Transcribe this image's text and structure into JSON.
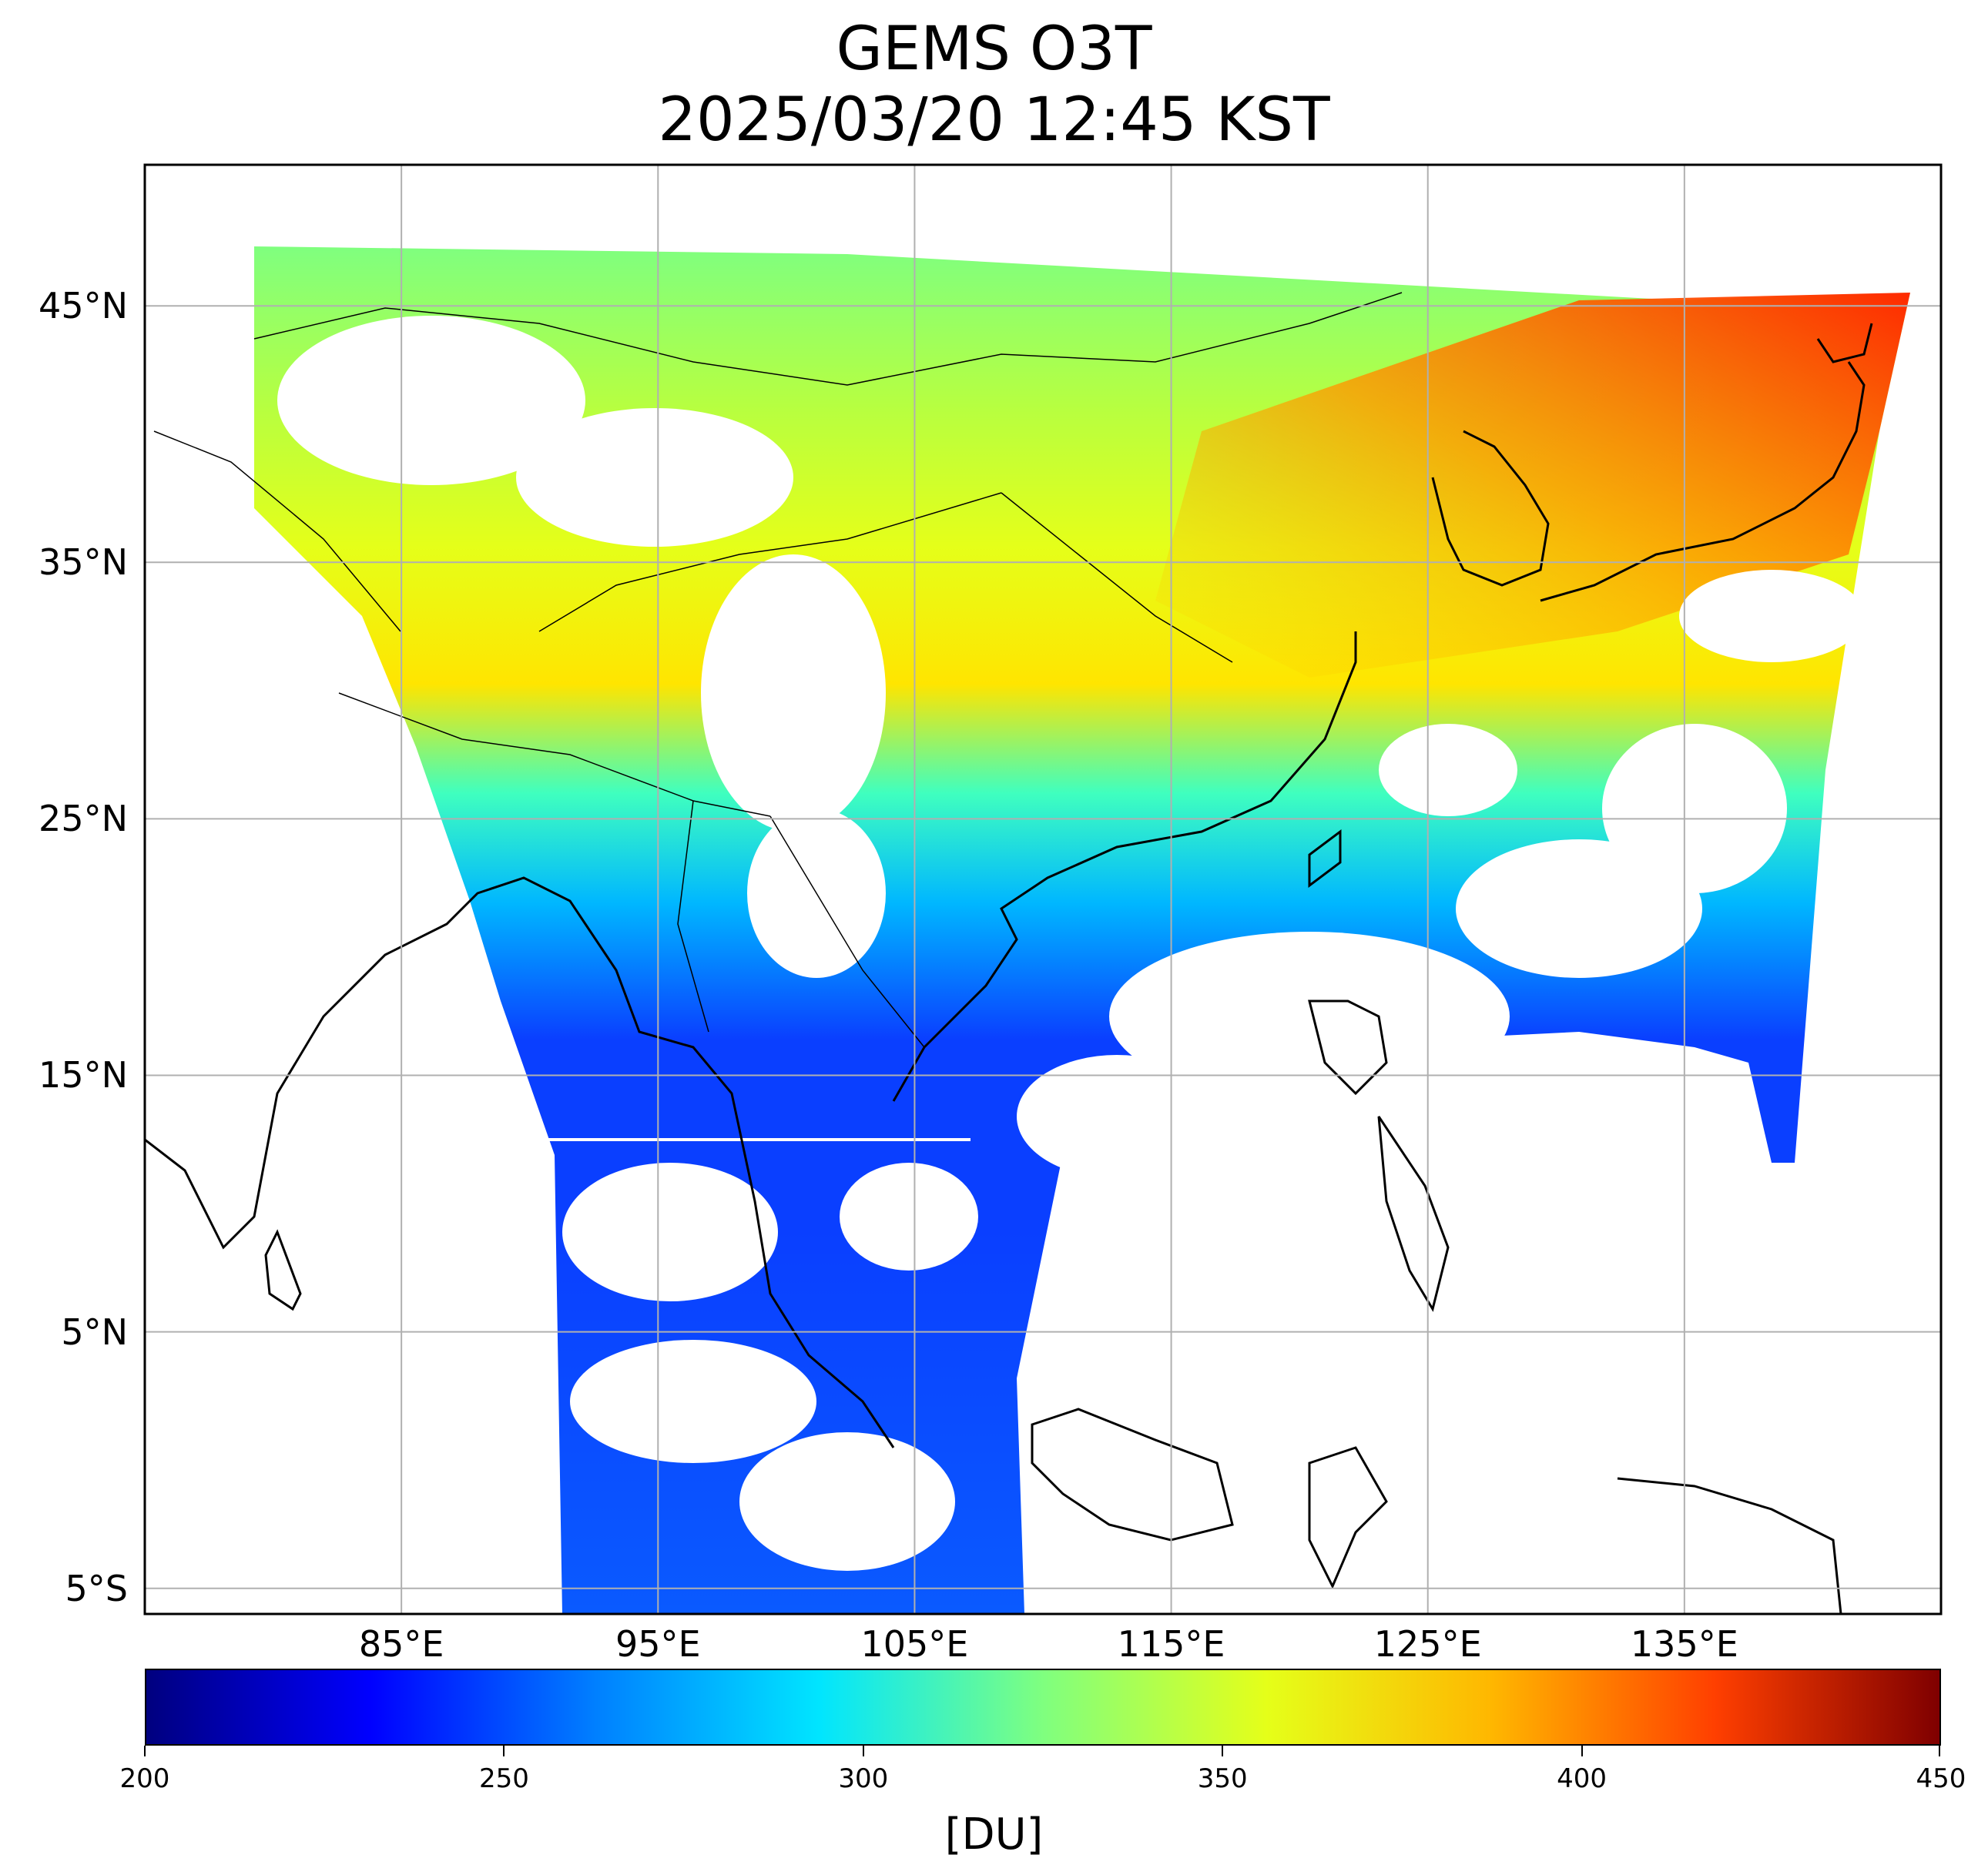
{
  "title": {
    "line1": "GEMS O3T",
    "line2": "2025/03/20 12:45 KST"
  },
  "map": {
    "extent_lon": [
      75,
      145
    ],
    "extent_lat": [
      -6,
      50.5
    ],
    "projection": "plate-carree",
    "gridlines": true,
    "lat_labels": [
      "45°N",
      "35°N",
      "25°N",
      "15°N",
      "5°N",
      "5°S"
    ],
    "lat_values": [
      45,
      35,
      25,
      15,
      5,
      -5
    ],
    "lon_labels": [
      "85°E",
      "95°E",
      "105°E",
      "115°E",
      "125°E",
      "135°E"
    ],
    "lon_values": [
      85,
      95,
      105,
      115,
      125,
      135
    ]
  },
  "colorbar": {
    "colormap": "jet",
    "min": 200,
    "max": 450,
    "tick_labels": [
      "200",
      "250",
      "300",
      "350",
      "400",
      "450"
    ],
    "tick_values": [
      200,
      250,
      300,
      350,
      400,
      450
    ],
    "unit": "[DU]"
  },
  "colors": {
    "gridline": "#b0b0b0",
    "coastline": "#000000",
    "cloud_gap": "#ffffff"
  }
}
